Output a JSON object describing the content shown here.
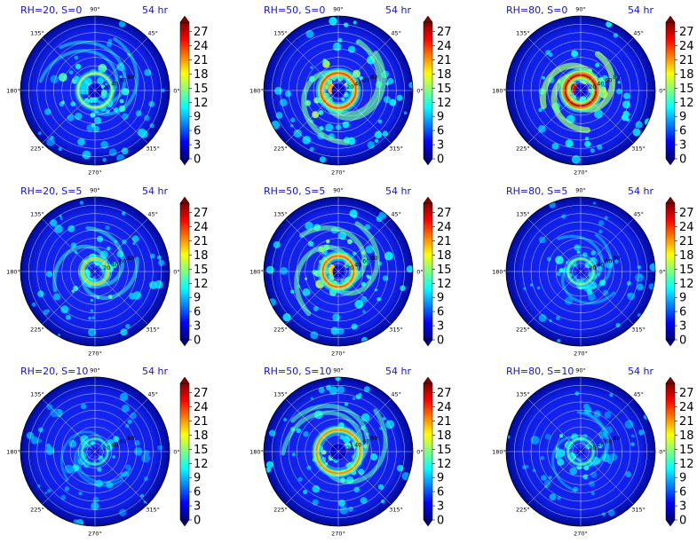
{
  "chart_data": [
    {
      "type": "polar-heatmap",
      "title_left": "RH=20, S=0",
      "title_right": "54 hr",
      "rh": 20,
      "s": 0,
      "intensity": 0.35,
      "core_radius": 0.16,
      "spread": 0.55
    },
    {
      "type": "polar-heatmap",
      "title_left": "RH=50, S=0",
      "title_right": "54 hr",
      "rh": 50,
      "s": 0,
      "intensity": 0.75,
      "core_radius": 0.16,
      "spread": 0.5
    },
    {
      "type": "polar-heatmap",
      "title_left": "RH=80, S=0",
      "title_right": "54 hr",
      "rh": 80,
      "s": 0,
      "intensity": 0.95,
      "core_radius": 0.14,
      "spread": 0.25
    },
    {
      "type": "polar-heatmap",
      "title_left": "RH=20, S=5",
      "title_right": "54 hr",
      "rh": 20,
      "s": 5,
      "intensity": 0.45,
      "core_radius": 0.1,
      "spread": 0.4
    },
    {
      "type": "polar-heatmap",
      "title_left": "RH=50, S=5",
      "title_right": "54 hr",
      "rh": 50,
      "s": 5,
      "intensity": 0.7,
      "core_radius": 0.14,
      "spread": 0.5
    },
    {
      "type": "polar-heatmap",
      "title_left": "RH=80, S=5",
      "title_right": "54 hr",
      "rh": 80,
      "s": 5,
      "intensity": 0.25,
      "core_radius": 0.1,
      "spread": 0.3
    },
    {
      "type": "polar-heatmap",
      "title_left": "RH=20, S=10",
      "title_right": "54 hr",
      "rh": 20,
      "s": 10,
      "intensity": 0.15,
      "core_radius": 0.1,
      "spread": 0.3
    },
    {
      "type": "polar-heatmap",
      "title_left": "RH=50, S=10",
      "title_right": "54 hr",
      "rh": 50,
      "s": 10,
      "intensity": 0.6,
      "core_radius": 0.22,
      "spread": 0.45
    },
    {
      "type": "polar-heatmap",
      "title_left": "RH=80, S=10",
      "title_right": "54 hr",
      "rh": 80,
      "s": 10,
      "intensity": 0.2,
      "core_radius": 0.1,
      "spread": 0.3
    }
  ],
  "angle_labels": [
    "90°",
    "45°",
    "0°",
    "315°",
    "270°",
    "225°",
    "180°",
    "135°"
  ],
  "angle_values": [
    90,
    45,
    0,
    315,
    270,
    225,
    180,
    135
  ],
  "ring_labels": [
    "20",
    "40",
    "60",
    "80"
  ],
  "colorbar": {
    "ticks": [
      "0",
      "3",
      "6",
      "9",
      "12",
      "15",
      "18",
      "21",
      "24",
      "27"
    ],
    "tick_values": [
      0,
      3,
      6,
      9,
      12,
      15,
      18,
      21,
      24,
      27
    ],
    "vmin": 0,
    "vmax": 29,
    "colormap": "jet",
    "colors": [
      "#00007f",
      "#0000ff",
      "#007fff",
      "#00ffff",
      "#7fff7f",
      "#ffff00",
      "#ff7f00",
      "#ff0000",
      "#7f0000"
    ]
  }
}
